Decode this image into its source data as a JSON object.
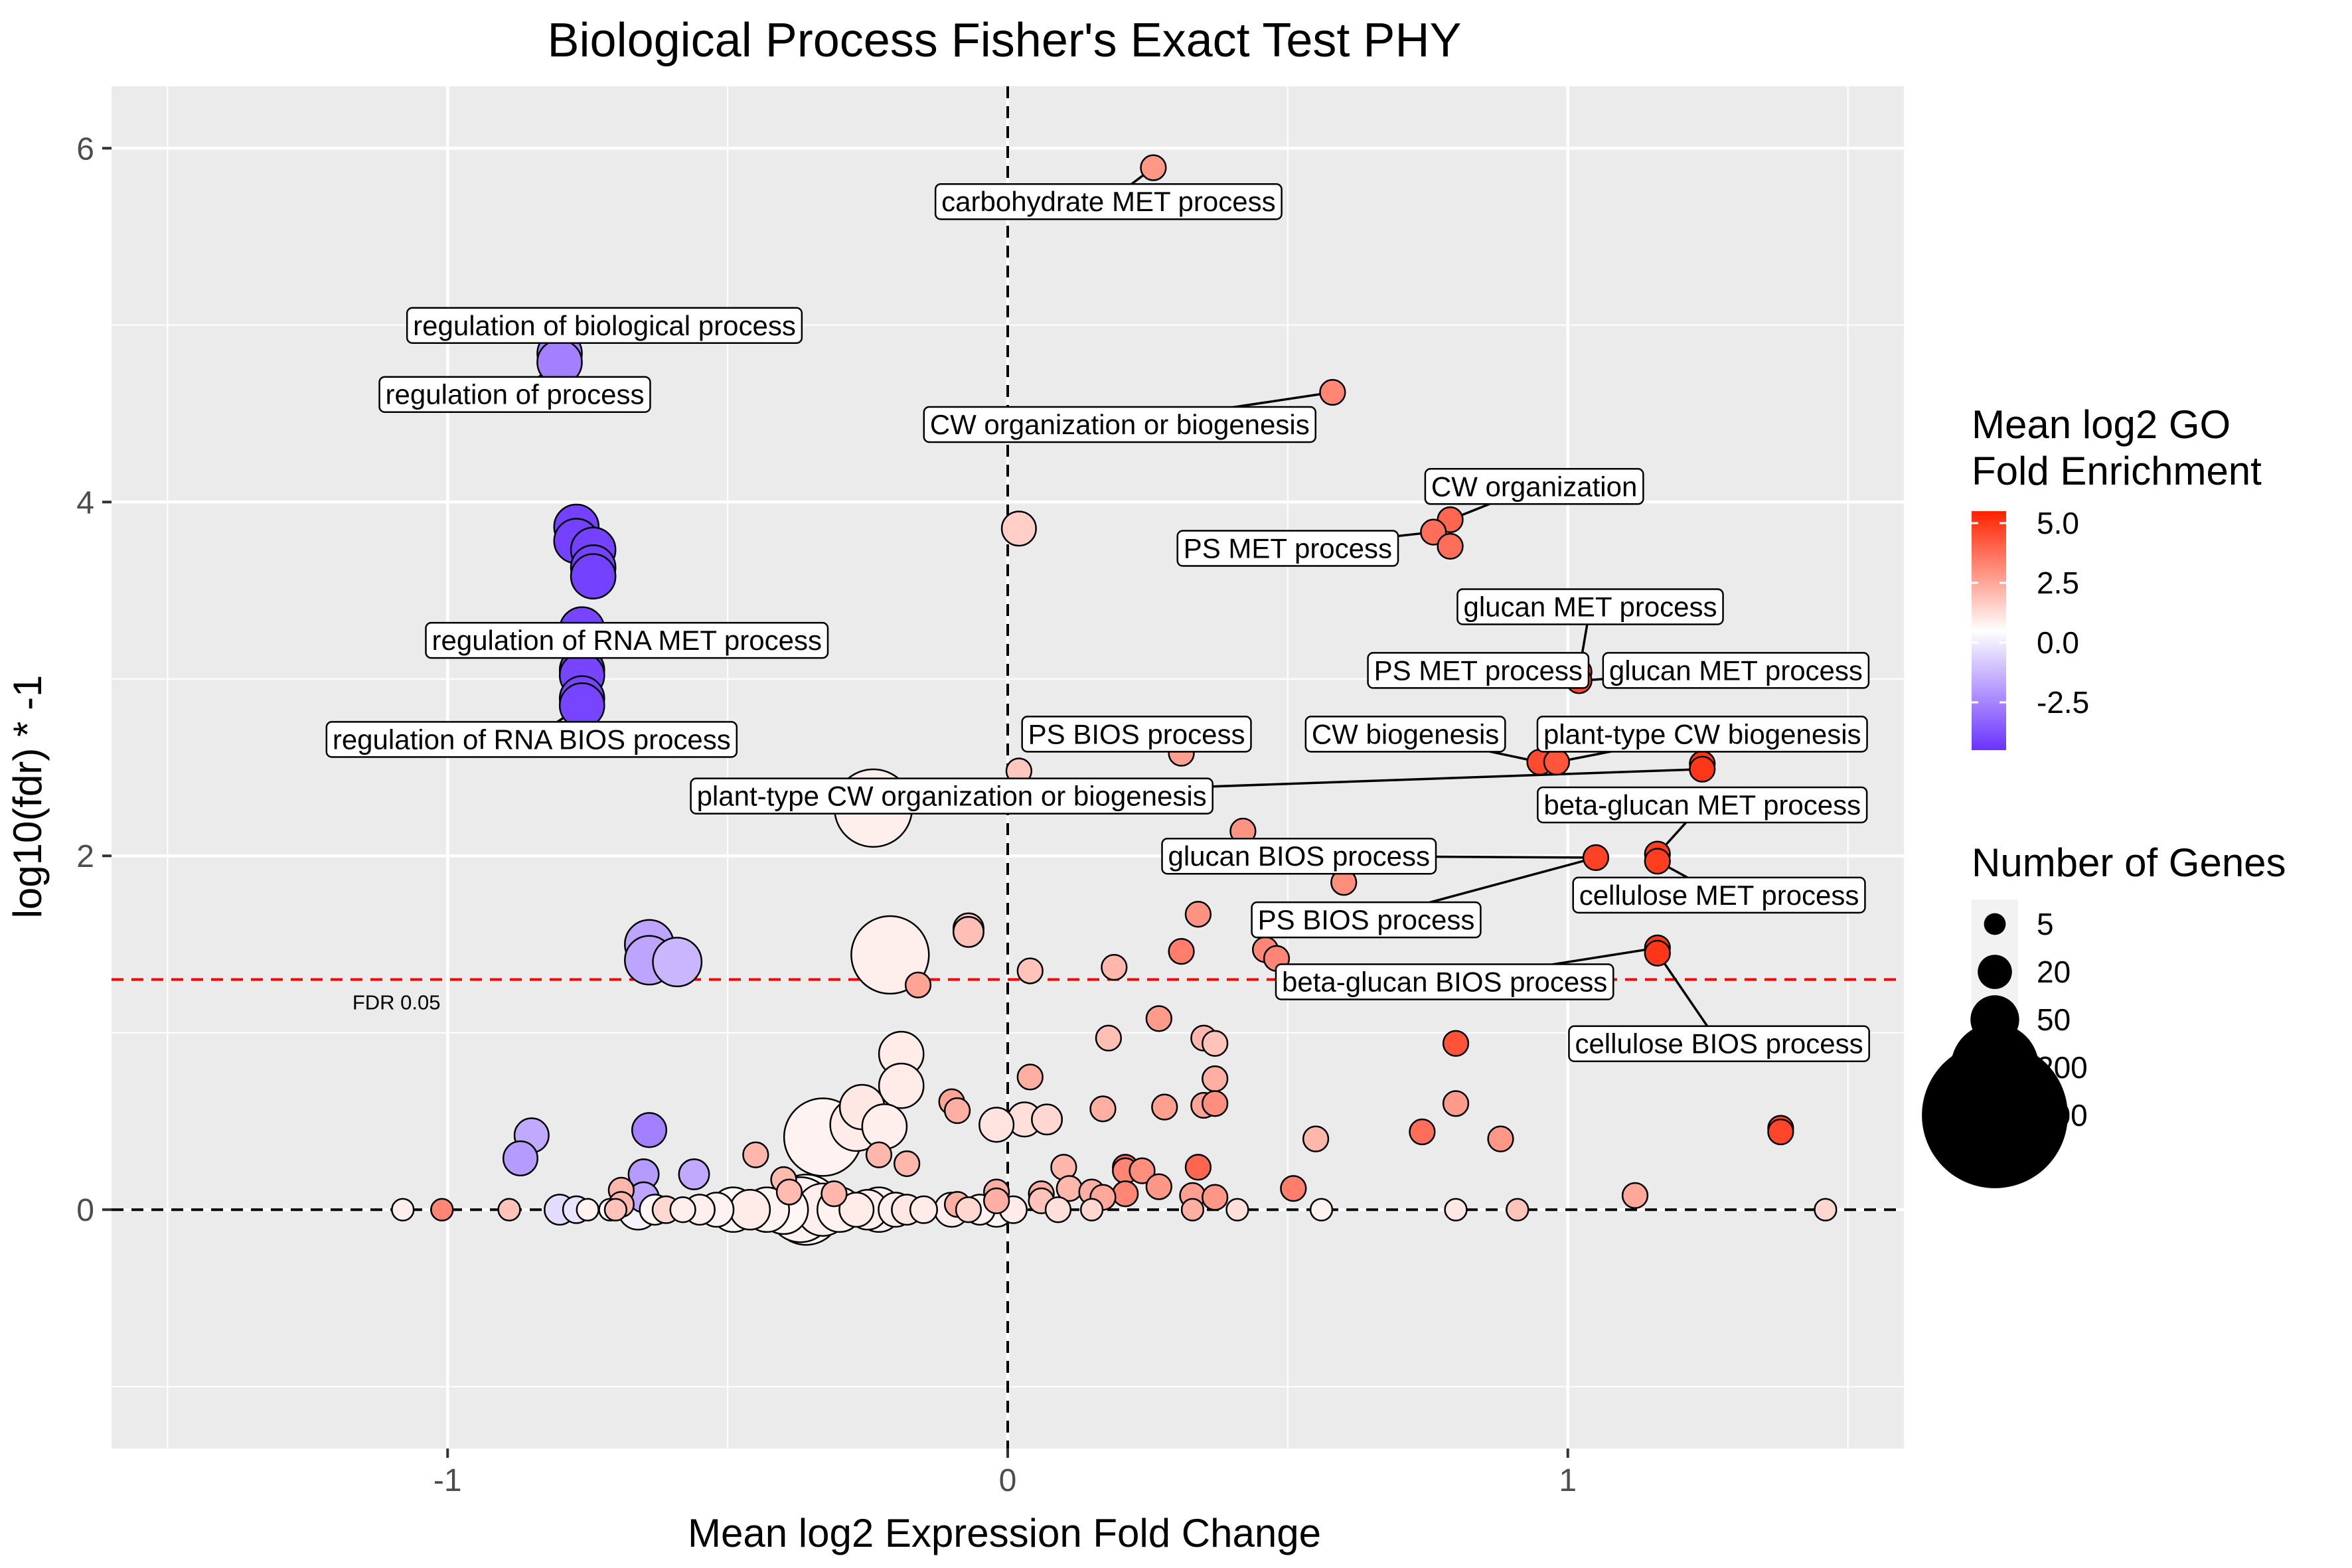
{
  "chart_data": {
    "type": "scatter",
    "title": "Biological Process Fisher's Exact Test PHY",
    "xlabel": "Mean log2 Expression Fold Change",
    "ylabel": "log10(fdr) * -1",
    "xlim": [
      -1.6,
      1.6
    ],
    "ylim": [
      -1.35,
      6.35
    ],
    "x_ticks": [
      -1,
      0,
      1
    ],
    "x_tick_labels": [
      "-1",
      "0",
      "1"
    ],
    "y_ticks": [
      0,
      2,
      4,
      6
    ],
    "y_tick_labels": [
      "0",
      "2",
      "4",
      "6"
    ],
    "grid": true,
    "background": "#ebebeb",
    "reference_lines": [
      {
        "orientation": "horizontal",
        "value": 1.301,
        "color": "#ff0000",
        "style": "dashed",
        "label": "FDR 0.05"
      },
      {
        "orientation": "horizontal",
        "value": 0,
        "color": "#000000",
        "style": "dashed"
      },
      {
        "orientation": "vertical",
        "value": 0,
        "color": "#000000",
        "style": "dashed"
      }
    ],
    "color_legend": {
      "title_lines": [
        "Mean log2 GO",
        "Fold Enrichment"
      ],
      "range": [
        -4.5,
        5.5
      ],
      "ticks": [
        5.0,
        2.5,
        0.0,
        -2.5
      ],
      "tick_labels": [
        "5.0",
        "2.5",
        "0.0",
        "-2.5"
      ],
      "low_color": "#6a33ff",
      "mid_color": "#ffffff",
      "high_color": "#ff2200"
    },
    "size_legend": {
      "title": "Number of Genes",
      "values": [
        5,
        20,
        50,
        200,
        600
      ],
      "labels": [
        "5",
        "20",
        "50",
        "200",
        "600"
      ]
    },
    "points": [
      {
        "x": 0.26,
        "y": 5.89,
        "n": 8,
        "c": 2.6
      },
      {
        "x": -0.8,
        "y": 4.84,
        "n": 40,
        "c": -2.8
      },
      {
        "x": -0.8,
        "y": 4.79,
        "n": 40,
        "c": -2.8
      },
      {
        "x": 0.58,
        "y": 4.62,
        "n": 8,
        "c": 3.0
      },
      {
        "x": -0.77,
        "y": 3.86,
        "n": 40,
        "c": -4.2
      },
      {
        "x": -0.77,
        "y": 3.78,
        "n": 40,
        "c": -4.2
      },
      {
        "x": -0.74,
        "y": 3.73,
        "n": 40,
        "c": -4.2
      },
      {
        "x": -0.74,
        "y": 3.63,
        "n": 40,
        "c": -4.2
      },
      {
        "x": -0.74,
        "y": 3.58,
        "n": 40,
        "c": -4.2
      },
      {
        "x": 0.02,
        "y": 3.85,
        "n": 20,
        "c": 1.2
      },
      {
        "x": 0.79,
        "y": 3.9,
        "n": 8,
        "c": 3.8
      },
      {
        "x": 0.76,
        "y": 3.83,
        "n": 8,
        "c": 3.6
      },
      {
        "x": 0.79,
        "y": 3.75,
        "n": 8,
        "c": 3.6
      },
      {
        "x": -0.76,
        "y": 3.28,
        "n": 40,
        "c": -4.1
      },
      {
        "x": -0.76,
        "y": 3.05,
        "n": 40,
        "c": -4.1
      },
      {
        "x": -0.76,
        "y": 3.02,
        "n": 40,
        "c": -4.1
      },
      {
        "x": -0.76,
        "y": 2.89,
        "n": 40,
        "c": -4.1
      },
      {
        "x": -0.76,
        "y": 2.85,
        "n": 40,
        "c": -4.1
      },
      {
        "x": 1.02,
        "y": 3.04,
        "n": 8,
        "c": 4.6
      },
      {
        "x": 1.02,
        "y": 2.99,
        "n": 8,
        "c": 4.6
      },
      {
        "x": 0.31,
        "y": 2.58,
        "n": 8,
        "c": 2.4
      },
      {
        "x": 0.95,
        "y": 2.53,
        "n": 8,
        "c": 4.5
      },
      {
        "x": 0.98,
        "y": 2.53,
        "n": 8,
        "c": 4.2
      },
      {
        "x": 1.24,
        "y": 2.52,
        "n": 8,
        "c": 5.0
      },
      {
        "x": 1.24,
        "y": 2.49,
        "n": 8,
        "c": 5.0
      },
      {
        "x": 0.02,
        "y": 2.48,
        "n": 8,
        "c": 1.4
      },
      {
        "x": -0.24,
        "y": 2.27,
        "n": 150,
        "c": 0.4
      },
      {
        "x": 0.42,
        "y": 2.14,
        "n": 8,
        "c": 2.7
      },
      {
        "x": 1.05,
        "y": 1.99,
        "n": 8,
        "c": 4.7
      },
      {
        "x": 1.16,
        "y": 2.01,
        "n": 8,
        "c": 4.8
      },
      {
        "x": 1.16,
        "y": 1.97,
        "n": 8,
        "c": 4.8
      },
      {
        "x": 0.6,
        "y": 1.85,
        "n": 8,
        "c": 2.8
      },
      {
        "x": 0.34,
        "y": 1.99,
        "n": 8,
        "c": 2.4
      },
      {
        "x": 0.34,
        "y": 1.67,
        "n": 8,
        "c": 2.7
      },
      {
        "x": -0.07,
        "y": 1.59,
        "n": 14,
        "c": 1.6
      },
      {
        "x": -0.07,
        "y": 1.57,
        "n": 14,
        "c": 1.6
      },
      {
        "x": -0.64,
        "y": 1.5,
        "n": 50,
        "c": -2.0
      },
      {
        "x": -0.64,
        "y": 1.41,
        "n": 50,
        "c": -2.0
      },
      {
        "x": -0.59,
        "y": 1.4,
        "n": 50,
        "c": -1.6
      },
      {
        "x": -0.21,
        "y": 1.44,
        "n": 150,
        "c": 0.4
      },
      {
        "x": 0.31,
        "y": 1.46,
        "n": 8,
        "c": 3.2
      },
      {
        "x": 0.46,
        "y": 1.47,
        "n": 8,
        "c": 3.0
      },
      {
        "x": 0.48,
        "y": 1.42,
        "n": 8,
        "c": 3.0
      },
      {
        "x": 1.16,
        "y": 1.48,
        "n": 8,
        "c": 5.0
      },
      {
        "x": 1.16,
        "y": 1.45,
        "n": 8,
        "c": 5.0
      },
      {
        "x": 0.04,
        "y": 1.35,
        "n": 8,
        "c": 1.5
      },
      {
        "x": 0.19,
        "y": 1.37,
        "n": 8,
        "c": 1.8
      },
      {
        "x": -0.16,
        "y": 1.27,
        "n": 8,
        "c": 2.3
      },
      {
        "x": 0.18,
        "y": 0.97,
        "n": 8,
        "c": 1.6
      },
      {
        "x": 0.27,
        "y": 1.08,
        "n": 8,
        "c": 2.5
      },
      {
        "x": -0.19,
        "y": 0.88,
        "n": 40,
        "c": 0.5
      },
      {
        "x": 0.35,
        "y": 0.97,
        "n": 8,
        "c": 1.8
      },
      {
        "x": 0.37,
        "y": 0.94,
        "n": 8,
        "c": 1.5
      },
      {
        "x": 0.8,
        "y": 0.94,
        "n": 8,
        "c": 4.3
      },
      {
        "x": -0.19,
        "y": 0.7,
        "n": 40,
        "c": 0.5
      },
      {
        "x": 0.04,
        "y": 0.75,
        "n": 8,
        "c": 2.0
      },
      {
        "x": 0.37,
        "y": 0.74,
        "n": 8,
        "c": 2.0
      },
      {
        "x": -0.26,
        "y": 0.58,
        "n": 40,
        "c": 0.6
      },
      {
        "x": -0.27,
        "y": 0.48,
        "n": 60,
        "c": 0.5
      },
      {
        "x": -0.22,
        "y": 0.47,
        "n": 40,
        "c": 0.4
      },
      {
        "x": -0.33,
        "y": 0.41,
        "n": 150,
        "c": 0.3
      },
      {
        "x": -0.1,
        "y": 0.61,
        "n": 8,
        "c": 2.3
      },
      {
        "x": -0.09,
        "y": 0.56,
        "n": 8,
        "c": 2.0
      },
      {
        "x": 0.03,
        "y": 0.51,
        "n": 20,
        "c": 0.8
      },
      {
        "x": 0.07,
        "y": 0.51,
        "n": 14,
        "c": 1.0
      },
      {
        "x": -0.02,
        "y": 0.48,
        "n": 20,
        "c": 0.7
      },
      {
        "x": 0.17,
        "y": 0.57,
        "n": 8,
        "c": 2.0
      },
      {
        "x": 0.28,
        "y": 0.58,
        "n": 8,
        "c": 2.4
      },
      {
        "x": 0.35,
        "y": 0.59,
        "n": 8,
        "c": 2.3
      },
      {
        "x": 0.37,
        "y": 0.6,
        "n": 8,
        "c": 2.8
      },
      {
        "x": -0.85,
        "y": 0.42,
        "n": 20,
        "c": -1.9
      },
      {
        "x": -0.64,
        "y": 0.45,
        "n": 20,
        "c": -2.8
      },
      {
        "x": -0.87,
        "y": 0.29,
        "n": 20,
        "c": -2.2
      },
      {
        "x": -0.65,
        "y": 0.2,
        "n": 14,
        "c": -2.2
      },
      {
        "x": -0.56,
        "y": 0.2,
        "n": 14,
        "c": -1.9
      },
      {
        "x": -0.65,
        "y": 0.07,
        "n": 14,
        "c": -2.0
      },
      {
        "x": 0.74,
        "y": 0.44,
        "n": 8,
        "c": 3.6
      },
      {
        "x": 0.8,
        "y": 0.6,
        "n": 8,
        "c": 2.5
      },
      {
        "x": 0.88,
        "y": 0.4,
        "n": 8,
        "c": 2.6
      },
      {
        "x": 1.38,
        "y": 0.46,
        "n": 8,
        "c": 4.6
      },
      {
        "x": 1.38,
        "y": 0.44,
        "n": 8,
        "c": 4.6
      },
      {
        "x": 0.55,
        "y": 0.4,
        "n": 8,
        "c": 1.8
      },
      {
        "x": 1.12,
        "y": 0.08,
        "n": 8,
        "c": 2.2
      },
      {
        "x": -0.45,
        "y": 0.31,
        "n": 8,
        "c": 1.8
      },
      {
        "x": -0.23,
        "y": 0.31,
        "n": 8,
        "c": 1.8
      },
      {
        "x": -0.18,
        "y": 0.26,
        "n": 8,
        "c": 1.8
      },
      {
        "x": -0.4,
        "y": 0.17,
        "n": 8,
        "c": 1.7
      },
      {
        "x": -0.31,
        "y": 0.09,
        "n": 8,
        "c": 1.8
      },
      {
        "x": -0.39,
        "y": 0.1,
        "n": 8,
        "c": 1.7
      },
      {
        "x": 0.1,
        "y": 0.24,
        "n": 8,
        "c": 1.8
      },
      {
        "x": 0.21,
        "y": 0.24,
        "n": 8,
        "c": 4.0
      },
      {
        "x": 0.21,
        "y": 0.22,
        "n": 8,
        "c": 3.0
      },
      {
        "x": 0.24,
        "y": 0.22,
        "n": 8,
        "c": 2.8
      },
      {
        "x": 0.34,
        "y": 0.24,
        "n": 8,
        "c": 3.8
      },
      {
        "x": 0.11,
        "y": 0.12,
        "n": 8,
        "c": 1.8
      },
      {
        "x": 0.15,
        "y": 0.1,
        "n": 8,
        "c": 2.0
      },
      {
        "x": 0.27,
        "y": 0.13,
        "n": 8,
        "c": 2.6
      },
      {
        "x": 0.21,
        "y": 0.09,
        "n": 8,
        "c": 3.0
      },
      {
        "x": 0.17,
        "y": 0.07,
        "n": 8,
        "c": 2.2
      },
      {
        "x": 0.06,
        "y": 0.09,
        "n": 8,
        "c": 2.0
      },
      {
        "x": 0.06,
        "y": 0.05,
        "n": 8,
        "c": 1.5
      },
      {
        "x": 0.33,
        "y": 0.08,
        "n": 8,
        "c": 2.4
      },
      {
        "x": 0.37,
        "y": 0.07,
        "n": 8,
        "c": 2.6
      },
      {
        "x": 0.51,
        "y": 0.12,
        "n": 8,
        "c": 3.2
      },
      {
        "x": -0.69,
        "y": 0.11,
        "n": 8,
        "c": 1.8
      },
      {
        "x": -0.69,
        "y": 0.03,
        "n": 8,
        "c": 1.8
      },
      {
        "x": -0.02,
        "y": 0.1,
        "n": 8,
        "c": 2.0
      },
      {
        "x": -0.02,
        "y": 0.05,
        "n": 8,
        "c": 2.0
      },
      {
        "x": -0.09,
        "y": 0.03,
        "n": 8,
        "c": 2.0
      },
      {
        "x": -1.08,
        "y": 0.0,
        "n": 5,
        "c": 0.4
      },
      {
        "x": -1.01,
        "y": 0.0,
        "n": 5,
        "c": 3.0
      },
      {
        "x": -0.89,
        "y": 0.0,
        "n": 5,
        "c": 1.5
      },
      {
        "x": -0.8,
        "y": 0.0,
        "n": 14,
        "c": -0.8
      },
      {
        "x": -0.77,
        "y": 0.0,
        "n": 10,
        "c": -0.6
      },
      {
        "x": -0.75,
        "y": 0.0,
        "n": 5,
        "c": 0.3
      },
      {
        "x": -0.71,
        "y": 0.0,
        "n": 5,
        "c": 0.2
      },
      {
        "x": -0.7,
        "y": 0.0,
        "n": 5,
        "c": 1.5
      },
      {
        "x": -0.66,
        "y": 0.0,
        "n": 30,
        "c": -0.3
      },
      {
        "x": -0.63,
        "y": 0.0,
        "n": 14,
        "c": 0.2
      },
      {
        "x": -0.61,
        "y": 0.0,
        "n": 10,
        "c": 1.0
      },
      {
        "x": -0.58,
        "y": 0.0,
        "n": 8,
        "c": 0.4
      },
      {
        "x": -0.55,
        "y": 0.0,
        "n": 14,
        "c": 0.4
      },
      {
        "x": -0.52,
        "y": 0.0,
        "n": 20,
        "c": 0.3
      },
      {
        "x": -0.49,
        "y": 0.0,
        "n": 40,
        "c": 0.2
      },
      {
        "x": -0.46,
        "y": 0.0,
        "n": 30,
        "c": 0.5
      },
      {
        "x": -0.43,
        "y": 0.0,
        "n": 40,
        "c": 0.3
      },
      {
        "x": -0.4,
        "y": 0.0,
        "n": 50,
        "c": 0.2
      },
      {
        "x": -0.37,
        "y": 0.0,
        "n": 100,
        "c": 0.3
      },
      {
        "x": -0.36,
        "y": 0.0,
        "n": 120,
        "c": 0.2
      },
      {
        "x": -0.33,
        "y": 0.0,
        "n": 60,
        "c": 0.4
      },
      {
        "x": -0.3,
        "y": 0.0,
        "n": 40,
        "c": 0.3
      },
      {
        "x": -0.27,
        "y": 0.0,
        "n": 20,
        "c": 0.5
      },
      {
        "x": -0.25,
        "y": 0.0,
        "n": 30,
        "c": 0.4
      },
      {
        "x": -0.23,
        "y": 0.0,
        "n": 40,
        "c": 0.3
      },
      {
        "x": -0.2,
        "y": 0.0,
        "n": 20,
        "c": 0.4
      },
      {
        "x": -0.18,
        "y": 0.0,
        "n": 14,
        "c": 0.6
      },
      {
        "x": -0.15,
        "y": 0.0,
        "n": 10,
        "c": 0.5
      },
      {
        "x": -0.1,
        "y": 0.0,
        "n": 20,
        "c": 0.4
      },
      {
        "x": -0.07,
        "y": 0.0,
        "n": 8,
        "c": 1.0
      },
      {
        "x": -0.05,
        "y": 0.0,
        "n": 14,
        "c": 0.3
      },
      {
        "x": -0.02,
        "y": 0.0,
        "n": 20,
        "c": 0.2
      },
      {
        "x": 0.01,
        "y": 0.0,
        "n": 10,
        "c": 0.5
      },
      {
        "x": 0.09,
        "y": 0.0,
        "n": 8,
        "c": 0.8
      },
      {
        "x": 0.15,
        "y": 0.0,
        "n": 5,
        "c": 1.0
      },
      {
        "x": 0.33,
        "y": 0.0,
        "n": 5,
        "c": 2.0
      },
      {
        "x": 0.41,
        "y": 0.0,
        "n": 5,
        "c": 0.8
      },
      {
        "x": 0.56,
        "y": 0.0,
        "n": 5,
        "c": 0.3
      },
      {
        "x": 0.8,
        "y": 0.0,
        "n": 5,
        "c": 0.6
      },
      {
        "x": 0.91,
        "y": 0.0,
        "n": 5,
        "c": 1.5
      },
      {
        "x": 1.46,
        "y": 0.0,
        "n": 5,
        "c": 1.0
      }
    ],
    "annotations": [
      {
        "text": "carbohydrate MET process",
        "tx": 0.18,
        "ty": 5.7,
        "px": 0.26,
        "py": 5.89
      },
      {
        "text": "regulation of biological process",
        "tx": -0.72,
        "ty": 5.0,
        "px": -0.8,
        "py": 4.84
      },
      {
        "text": "regulation of  process",
        "tx": -0.88,
        "ty": 4.61,
        "px": -0.8,
        "py": 4.79
      },
      {
        "text": "CW organization or biogenesis",
        "tx": 0.2,
        "ty": 4.44,
        "px": 0.58,
        "py": 4.62
      },
      {
        "text": "CW organization",
        "tx": 0.94,
        "ty": 4.09,
        "px": 0.79,
        "py": 3.9
      },
      {
        "text": "PS MET process",
        "tx": 0.5,
        "ty": 3.74,
        "px": 0.76,
        "py": 3.83
      },
      {
        "text": "glucan MET process",
        "tx": 1.04,
        "ty": 3.41,
        "px": 1.02,
        "py": 3.04
      },
      {
        "text": "PS MET process",
        "tx": 0.84,
        "ty": 3.05,
        "px": 1.02,
        "py": 3.04
      },
      {
        "text": "glucan MET process",
        "tx": 1.3,
        "ty": 3.05,
        "px": 1.02,
        "py": 2.99
      },
      {
        "text": "regulation of RNA MET process",
        "tx": -0.68,
        "ty": 3.22,
        "px": -0.76,
        "py": 3.05
      },
      {
        "text": "regulation of RNA BIOS process",
        "tx": -0.85,
        "ty": 2.66,
        "px": -0.76,
        "py": 2.85
      },
      {
        "text": "PS BIOS process",
        "tx": 0.23,
        "ty": 2.69,
        "px": 0.31,
        "py": 2.58
      },
      {
        "text": "CW biogenesis",
        "tx": 0.71,
        "ty": 2.69,
        "px": 0.95,
        "py": 2.53
      },
      {
        "text": "plant-type CW biogenesis",
        "tx": 1.24,
        "ty": 2.69,
        "px": 0.98,
        "py": 2.53
      },
      {
        "text": "plant-type CW organization or biogenesis",
        "tx": -0.1,
        "ty": 2.34,
        "px": 1.24,
        "py": 2.49
      },
      {
        "text": "beta-glucan MET process",
        "tx": 1.24,
        "ty": 2.29,
        "px": 1.16,
        "py": 2.01
      },
      {
        "text": "glucan BIOS process",
        "tx": 0.52,
        "ty": 2.0,
        "px": 1.05,
        "py": 1.99
      },
      {
        "text": "cellulose MET process",
        "tx": 1.27,
        "ty": 1.78,
        "px": 1.16,
        "py": 1.97
      },
      {
        "text": "PS BIOS process",
        "tx": 0.64,
        "ty": 1.64,
        "px": 1.05,
        "py": 1.99
      },
      {
        "text": "beta-glucan BIOS process",
        "tx": 0.78,
        "ty": 1.29,
        "px": 1.16,
        "py": 1.48
      },
      {
        "text": "cellulose BIOS process",
        "tx": 1.27,
        "ty": 0.94,
        "px": 1.16,
        "py": 1.45
      }
    ]
  }
}
